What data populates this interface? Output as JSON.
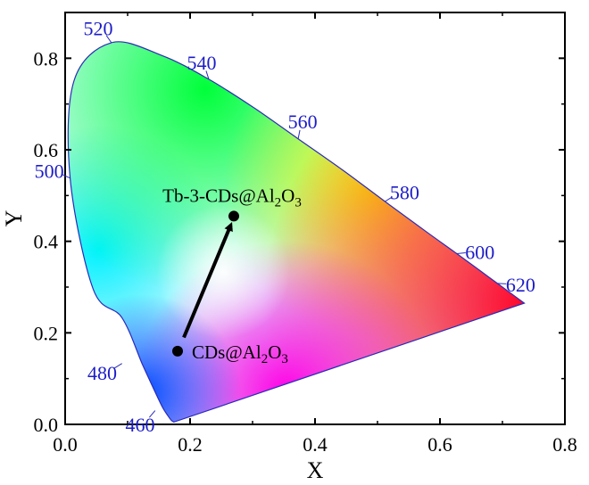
{
  "chart_data": {
    "type": "scatter",
    "title": "",
    "xlabel": "X",
    "ylabel": "Y",
    "xlim": [
      0.0,
      0.8
    ],
    "ylim": [
      0.0,
      0.9
    ],
    "x_ticks": [
      "0.0",
      "0.2",
      "0.4",
      "0.6",
      "0.8"
    ],
    "y_ticks": [
      "0.0",
      "0.2",
      "0.4",
      "0.6",
      "0.8"
    ],
    "grid": false,
    "spectral_locus": [
      {
        "x": 0.174,
        "y": 0.005
      },
      {
        "x": 0.17,
        "y": 0.009
      },
      {
        "x": 0.165,
        "y": 0.018
      },
      {
        "x": 0.156,
        "y": 0.037
      },
      {
        "x": 0.144,
        "y": 0.071
      },
      {
        "x": 0.124,
        "y": 0.13
      },
      {
        "x": 0.091,
        "y": 0.233
      },
      {
        "x": 0.045,
        "y": 0.295
      },
      {
        "x": 0.008,
        "y": 0.538
      },
      {
        "x": 0.014,
        "y": 0.75
      },
      {
        "x": 0.074,
        "y": 0.834
      },
      {
        "x": 0.155,
        "y": 0.806
      },
      {
        "x": 0.23,
        "y": 0.754
      },
      {
        "x": 0.302,
        "y": 0.692
      },
      {
        "x": 0.373,
        "y": 0.624
      },
      {
        "x": 0.445,
        "y": 0.555
      },
      {
        "x": 0.512,
        "y": 0.487
      },
      {
        "x": 0.575,
        "y": 0.424
      },
      {
        "x": 0.627,
        "y": 0.373
      },
      {
        "x": 0.666,
        "y": 0.334
      },
      {
        "x": 0.692,
        "y": 0.308
      },
      {
        "x": 0.735,
        "y": 0.265
      }
    ],
    "wavelength_labels": [
      {
        "label": "460",
        "x": 0.144,
        "y": 0.03
      },
      {
        "label": "480",
        "x": 0.091,
        "y": 0.133
      },
      {
        "label": "500",
        "x": 0.008,
        "y": 0.538
      },
      {
        "label": "520",
        "x": 0.074,
        "y": 0.834
      },
      {
        "label": "540",
        "x": 0.23,
        "y": 0.754
      },
      {
        "label": "560",
        "x": 0.373,
        "y": 0.624
      },
      {
        "label": "580",
        "x": 0.512,
        "y": 0.487
      },
      {
        "label": "600",
        "x": 0.627,
        "y": 0.373
      },
      {
        "label": "620",
        "x": 0.692,
        "y": 0.308
      }
    ],
    "points": [
      {
        "name": "CDs@Al",
        "sub1": "2",
        "mid": "O",
        "sub2": "3",
        "x": 0.18,
        "y": 0.16
      },
      {
        "name": "Tb-3-CDs@Al",
        "sub1": "2",
        "mid": "O",
        "sub2": "3",
        "x": 0.27,
        "y": 0.455
      }
    ],
    "annotations": [
      {
        "type": "arrow",
        "from": {
          "x": 0.19,
          "y": 0.19
        },
        "to": {
          "x": 0.265,
          "y": 0.435
        }
      }
    ]
  }
}
